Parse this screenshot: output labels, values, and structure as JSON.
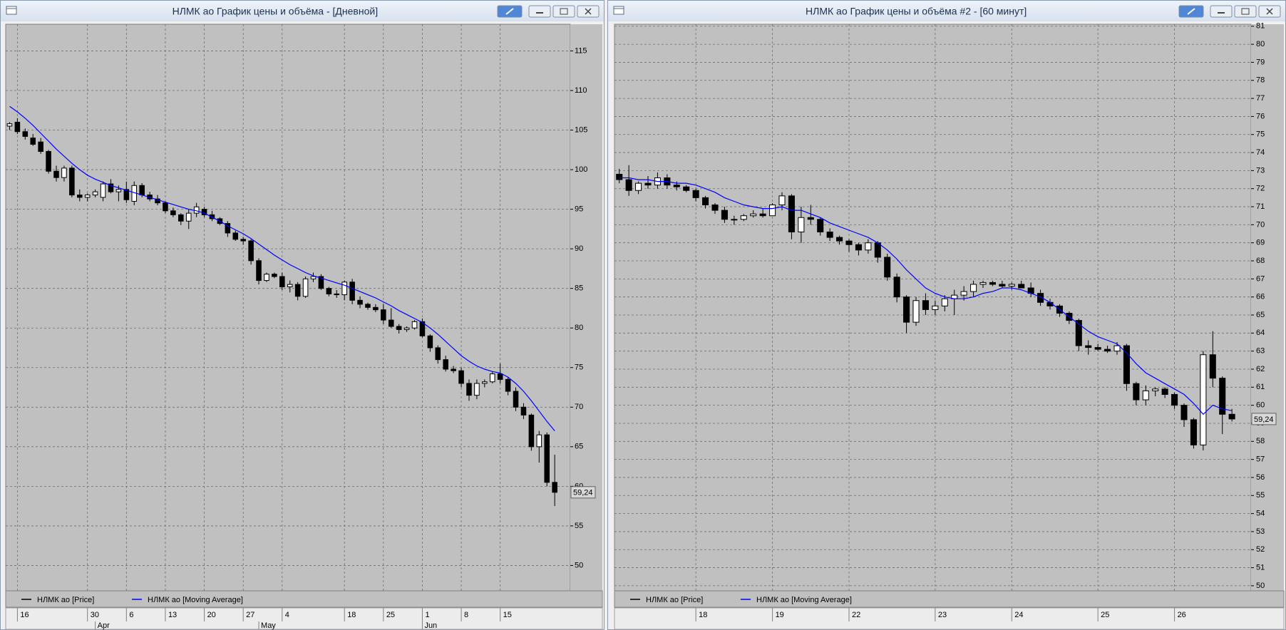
{
  "chart_data": [
    {
      "type": "candlestick",
      "title": "НЛМК ао График цены и объёма - [Дневной]",
      "categories": [
        null,
        "16",
        null,
        null,
        null,
        null,
        null,
        null,
        null,
        null,
        "30",
        null,
        null,
        null,
        null,
        "6",
        null,
        null,
        null,
        null,
        "13",
        null,
        null,
        null,
        null,
        "20",
        null,
        null,
        null,
        null,
        "27",
        null,
        null,
        null,
        null,
        "4",
        null,
        null,
        null,
        null,
        null,
        null,
        null,
        "18",
        null,
        null,
        null,
        null,
        "25",
        null,
        null,
        null,
        null,
        "1",
        null,
        null,
        null,
        null,
        "8",
        null,
        null,
        null,
        null,
        "15",
        null,
        null,
        null,
        null,
        null,
        null,
        null
      ],
      "months": [
        null,
        null,
        null,
        null,
        null,
        null,
        null,
        null,
        null,
        null,
        null,
        "Apr",
        null,
        null,
        null,
        null,
        null,
        null,
        null,
        null,
        null,
        null,
        null,
        null,
        null,
        null,
        null,
        null,
        null,
        null,
        null,
        null,
        "May",
        null,
        null,
        null,
        null,
        null,
        null,
        null,
        null,
        null,
        null,
        null,
        null,
        null,
        null,
        null,
        null,
        null,
        null,
        null,
        null,
        "Jun",
        null,
        null,
        null,
        null,
        null,
        null,
        null,
        null,
        null,
        null,
        null,
        null,
        null,
        null,
        null,
        null,
        null
      ],
      "series": [
        {
          "name": "НЛМК ао [Price]",
          "color": "#000000",
          "open": [
            105.5,
            106,
            104.8,
            104,
            103.5,
            102.3,
            99.8,
            99,
            100.2,
            96.8,
            96.5,
            96.8,
            96.5,
            98.2,
            97.2,
            97.5,
            96,
            98,
            96.8,
            96.3,
            95.8,
            94.8,
            94.3,
            93.5,
            94.5,
            95,
            94.3,
            93.8,
            93.2,
            92,
            91.2,
            91,
            88.5,
            86,
            86.8,
            86.5,
            85.2,
            85.5,
            84,
            86.2,
            86.5,
            85,
            84.3,
            84.2,
            85.8,
            83.5,
            83,
            82.6,
            82.3,
            81,
            80.2,
            79.8,
            80,
            80.8,
            79,
            77.5,
            76,
            74.8,
            74.6,
            73,
            71.5,
            73,
            73.2,
            74.2,
            73.5,
            72,
            70,
            69,
            65,
            66.5,
            60.5
          ],
          "high": [
            106,
            106.5,
            105.2,
            104.5,
            104,
            102.5,
            100.5,
            100.5,
            100.5,
            97.5,
            97,
            97.5,
            98.5,
            98.8,
            98,
            98.5,
            98.5,
            98.3,
            97.2,
            96.8,
            96,
            95.2,
            94.5,
            95,
            95.8,
            95.3,
            94.8,
            94,
            93.5,
            92.3,
            91.5,
            91.2,
            88.8,
            87,
            87,
            87,
            86,
            85.8,
            86.5,
            87,
            86.8,
            85.2,
            84.8,
            86,
            86.2,
            84,
            83.2,
            83,
            83,
            82.5,
            80.5,
            80.2,
            81,
            81.2,
            79.2,
            77.8,
            76.5,
            75.2,
            75,
            73.5,
            73.5,
            73.5,
            74.5,
            75.5,
            73.8,
            72.5,
            70.5,
            69.2,
            67,
            66.8,
            64
          ],
          "low": [
            105,
            104.5,
            103.8,
            103,
            102,
            99.5,
            98.5,
            98.5,
            96.5,
            96,
            96,
            96.5,
            96,
            97,
            96,
            95.8,
            95.5,
            96.5,
            96,
            95.5,
            94.5,
            94,
            93,
            92.5,
            94,
            94,
            93.5,
            93,
            91.5,
            91,
            90.5,
            88,
            85.5,
            85.8,
            86.3,
            84.8,
            84.5,
            83.5,
            83.8,
            85.8,
            84.8,
            84,
            83.8,
            83.5,
            83,
            82.5,
            82.3,
            82,
            80.5,
            80,
            79.3,
            79.5,
            79.8,
            78.8,
            77,
            75.5,
            74.5,
            74.3,
            72.5,
            70.8,
            71,
            72.5,
            73,
            73,
            71.5,
            69.5,
            68.5,
            64.5,
            63,
            60,
            57.5
          ],
          "close": [
            105.8,
            104.8,
            104.2,
            103.2,
            102.3,
            99.8,
            99,
            100.2,
            96.8,
            96.5,
            96.8,
            97.2,
            98.2,
            97.2,
            97.5,
            96.2,
            98,
            96.8,
            96.3,
            95.8,
            94.8,
            94.3,
            93.5,
            94.5,
            95.3,
            94.3,
            93.8,
            93.2,
            92,
            91.2,
            91,
            88.5,
            86,
            86.8,
            86.5,
            85.2,
            85.5,
            84,
            86.2,
            86.5,
            85,
            84.3,
            84.2,
            85.8,
            83.5,
            83,
            82.6,
            82.3,
            81,
            80.2,
            79.8,
            80,
            80.8,
            79,
            77.5,
            76,
            74.8,
            74.6,
            73,
            71.5,
            73,
            73.2,
            74.2,
            73.5,
            72,
            70,
            69,
            65,
            66.5,
            60.5,
            59.24
          ]
        },
        {
          "name": "НЛМК ао [Moving Average]",
          "color": "#0000ff",
          "values": [
            108,
            107.3,
            106.5,
            105.6,
            104.6,
            103.6,
            102.6,
            101.7,
            100.8,
            100,
            99.3,
            98.8,
            98.4,
            98,
            97.7,
            97.4,
            97.1,
            96.8,
            96.5,
            96.2,
            95.9,
            95.6,
            95.3,
            95,
            94.8,
            94.5,
            94,
            93.5,
            92.9,
            92.4,
            91.9,
            91.3,
            90.6,
            89.9,
            89.2,
            88.6,
            88,
            87.5,
            87,
            86.6,
            86.3,
            86,
            85.7,
            85.4,
            85,
            84.6,
            84.2,
            83.8,
            83.3,
            82.8,
            82.2,
            81.7,
            81.2,
            80.7,
            80,
            79.2,
            78.3,
            77.4,
            76.5,
            75.8,
            75.2,
            74.8,
            74.5,
            74.3,
            73.8,
            73,
            72,
            70.8,
            69.5,
            68.2,
            67
          ]
        }
      ],
      "ylim": [
        46.8,
        118.37
      ],
      "yticks": [
        50,
        55,
        60,
        65,
        70,
        75,
        80,
        85,
        90,
        95,
        100,
        105,
        110,
        115
      ],
      "grid": true,
      "last_price": {
        "value": 59.24,
        "label": "59,24"
      }
    },
    {
      "type": "candlestick",
      "title": "НЛМК ао График цены и объёма #2 - [60 минут]",
      "categories": [
        null,
        null,
        null,
        null,
        null,
        null,
        null,
        null,
        "18",
        null,
        null,
        null,
        null,
        null,
        null,
        null,
        "19",
        null,
        null,
        null,
        null,
        null,
        null,
        null,
        "22",
        null,
        null,
        null,
        null,
        null,
        null,
        null,
        null,
        "23",
        null,
        null,
        null,
        null,
        null,
        null,
        null,
        "24",
        null,
        null,
        null,
        null,
        null,
        null,
        null,
        null,
        "25",
        null,
        null,
        null,
        null,
        null,
        null,
        null,
        "26",
        null,
        null,
        null,
        null,
        null,
        null
      ],
      "series": [
        {
          "name": "НЛМК ао [Price]",
          "color": "#000000",
          "open": [
            72.8,
            72.5,
            71.9,
            72.3,
            72.2,
            72.6,
            72.2,
            72.1,
            71.9,
            71.5,
            71.1,
            70.8,
            70.3,
            70.3,
            70.5,
            70.6,
            70.5,
            71.1,
            71.6,
            69.6,
            70.4,
            70.3,
            69.6,
            69.3,
            69.1,
            68.9,
            68.6,
            69.0,
            68.2,
            67.1,
            66.0,
            64.6,
            65.8,
            65.3,
            65.5,
            65.9,
            66.1,
            66.3,
            66.7,
            66.8,
            66.7,
            66.6,
            66.7,
            66.5,
            66.2,
            65.7,
            65.5,
            65.1,
            64.7,
            63.3,
            63.2,
            63.1,
            63.0,
            63.3,
            61.2,
            60.3,
            60.8,
            60.9,
            60.6,
            60.0,
            59.2,
            57.8,
            62.8,
            61.5,
            59.5
          ],
          "high": [
            73.1,
            73.3,
            72.4,
            72.7,
            72.9,
            72.8,
            72.4,
            72.2,
            72.0,
            71.6,
            71.2,
            71.0,
            70.5,
            70.6,
            70.8,
            70.9,
            71.2,
            71.8,
            71.7,
            71.0,
            71.1,
            70.4,
            69.8,
            69.4,
            69.2,
            69.0,
            69.2,
            69.1,
            68.4,
            67.3,
            66.1,
            66.0,
            66.2,
            65.8,
            66.1,
            66.4,
            66.6,
            66.9,
            66.9,
            66.9,
            66.9,
            66.8,
            66.9,
            66.8,
            66.4,
            65.9,
            65.6,
            65.2,
            64.8,
            63.6,
            63.4,
            63.3,
            63.5,
            63.4,
            61.3,
            61.1,
            61.0,
            61.0,
            60.7,
            60.1,
            59.3,
            63.0,
            64.1,
            61.6,
            59.8
          ],
          "low": [
            72.3,
            71.6,
            71.7,
            72.0,
            72.0,
            72.0,
            71.9,
            71.8,
            71.3,
            70.9,
            70.6,
            70.1,
            70.0,
            70.2,
            70.4,
            70.4,
            70.5,
            70.8,
            69.2,
            69.0,
            70.0,
            69.4,
            69.1,
            68.9,
            68.5,
            68.3,
            68.4,
            67.9,
            66.9,
            65.7,
            64.0,
            64.4,
            65.0,
            65.0,
            65.2,
            65.0,
            65.8,
            66.0,
            66.5,
            66.6,
            66.5,
            66.4,
            66.5,
            66.0,
            65.5,
            65.3,
            64.9,
            64.5,
            63.0,
            62.8,
            63.0,
            62.9,
            62.8,
            60.8,
            60.0,
            60.0,
            60.5,
            60.4,
            59.8,
            58.8,
            57.6,
            57.5,
            61.0,
            58.4,
            59.1
          ],
          "close": [
            72.5,
            71.9,
            72.3,
            72.2,
            72.6,
            72.2,
            72.1,
            71.9,
            71.5,
            71.1,
            70.8,
            70.3,
            70.3,
            70.5,
            70.6,
            70.5,
            71.1,
            71.6,
            69.6,
            70.4,
            70.3,
            69.6,
            69.3,
            69.1,
            68.9,
            68.6,
            69.0,
            68.2,
            67.1,
            66.0,
            64.6,
            65.8,
            65.3,
            65.5,
            65.9,
            66.1,
            66.3,
            66.7,
            66.8,
            66.7,
            66.6,
            66.7,
            66.5,
            66.2,
            65.7,
            65.5,
            65.1,
            64.7,
            63.3,
            63.2,
            63.1,
            63.0,
            63.3,
            61.2,
            60.3,
            60.8,
            60.9,
            60.6,
            60.0,
            59.2,
            57.8,
            62.8,
            61.5,
            59.5,
            59.24
          ]
        },
        {
          "name": "НЛМК ао [Moving Average]",
          "color": "#0000ff",
          "values": [
            72.6,
            72.6,
            72.5,
            72.5,
            72.4,
            72.4,
            72.3,
            72.3,
            72.2,
            72.0,
            71.8,
            71.5,
            71.3,
            71.1,
            71.0,
            70.9,
            70.9,
            71.0,
            70.8,
            70.8,
            70.6,
            70.4,
            70.1,
            69.9,
            69.7,
            69.5,
            69.3,
            69.0,
            68.6,
            68.1,
            67.5,
            67.0,
            66.5,
            66.2,
            66.0,
            65.9,
            65.9,
            66.0,
            66.2,
            66.3,
            66.5,
            66.5,
            66.4,
            66.2,
            66.0,
            65.7,
            65.3,
            64.9,
            64.5,
            64.1,
            63.8,
            63.6,
            63.4,
            62.9,
            62.3,
            61.8,
            61.5,
            61.2,
            60.9,
            60.6,
            60.1,
            59.5,
            60.0,
            59.8,
            59.7
          ]
        }
      ],
      "ylim": [
        49.72,
        81.11
      ],
      "yticks": [
        50,
        51,
        52,
        53,
        54,
        55,
        56,
        57,
        58,
        59,
        60,
        61,
        62,
        63,
        64,
        65,
        66,
        67,
        68,
        69,
        70,
        71,
        72,
        73,
        74,
        75,
        76,
        77,
        78,
        79,
        80,
        81
      ],
      "grid": true,
      "last_price": {
        "value": 59.24,
        "label": "59,24"
      }
    }
  ]
}
